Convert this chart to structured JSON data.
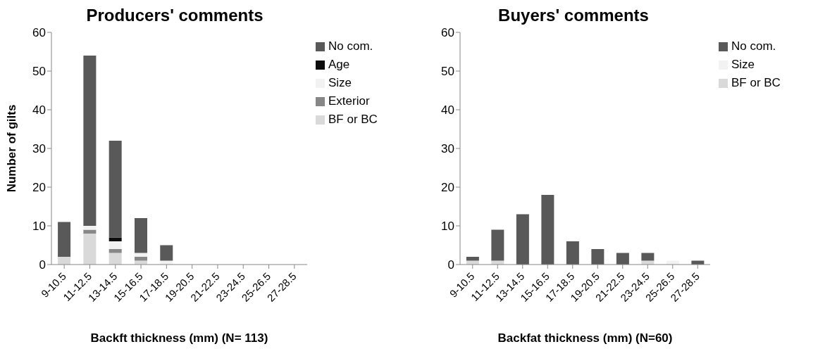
{
  "chart_data": [
    {
      "type": "bar",
      "title": "Producers' comments",
      "xlabel": "Backft thickness (mm) (N= 113)",
      "ylabel": "Number of gilts",
      "stacked": true,
      "legend": "right",
      "grid": false,
      "categories": [
        "9-10.5",
        "11-12.5",
        "13-14.5",
        "15-16.5",
        "17-18.5",
        "19-20.5",
        "21-22.5",
        "23-24.5",
        "25-26.5",
        "27-28.5"
      ],
      "ylim": [
        0,
        60
      ],
      "yticks": [
        0,
        10,
        20,
        30,
        40,
        50,
        60
      ],
      "series": [
        {
          "name": "BF or BC",
          "color": "#d9d9d9",
          "values": [
            2,
            8,
            3,
            1,
            0,
            0,
            0,
            0,
            0,
            0
          ]
        },
        {
          "name": "Exterior",
          "color": "#878787",
          "values": [
            0,
            1,
            1,
            1,
            0,
            0,
            0,
            0,
            0,
            0
          ]
        },
        {
          "name": "Size",
          "color": "#f2f2f2",
          "values": [
            0,
            1,
            2,
            1,
            1,
            0,
            0,
            0,
            0,
            0
          ]
        },
        {
          "name": "Age",
          "color": "#0d0d0d",
          "values": [
            0,
            0,
            1,
            0,
            0,
            0,
            0,
            0,
            0,
            0
          ]
        },
        {
          "name": "No com.",
          "color": "#595959",
          "values": [
            9,
            44,
            25,
            9,
            4,
            0,
            0,
            0,
            0,
            0
          ]
        }
      ]
    },
    {
      "type": "bar",
      "title": "Buyers' comments",
      "xlabel": "Backfat thickness (mm) (N=60)",
      "stacked": true,
      "legend": "right",
      "grid": false,
      "categories": [
        "9-10.5",
        "11-12.5",
        "13-14.5",
        "15-16.5",
        "17-18.5",
        "19-20.5",
        "21-22.5",
        "23-24.5",
        "25-26.5",
        "27-28.5"
      ],
      "ylim": [
        0,
        60
      ],
      "yticks": [
        0,
        10,
        20,
        30,
        40,
        50,
        60
      ],
      "series": [
        {
          "name": "BF or BC",
          "color": "#d9d9d9",
          "values": [
            1,
            1,
            0,
            0,
            0,
            0,
            0,
            1,
            0,
            0
          ]
        },
        {
          "name": "Size",
          "color": "#f2f2f2",
          "values": [
            0,
            0,
            0,
            0,
            0,
            0,
            0,
            0,
            1,
            0
          ]
        },
        {
          "name": "No com.",
          "color": "#595959",
          "values": [
            1,
            8,
            13,
            18,
            6,
            4,
            3,
            2,
            0,
            1
          ]
        }
      ]
    }
  ]
}
